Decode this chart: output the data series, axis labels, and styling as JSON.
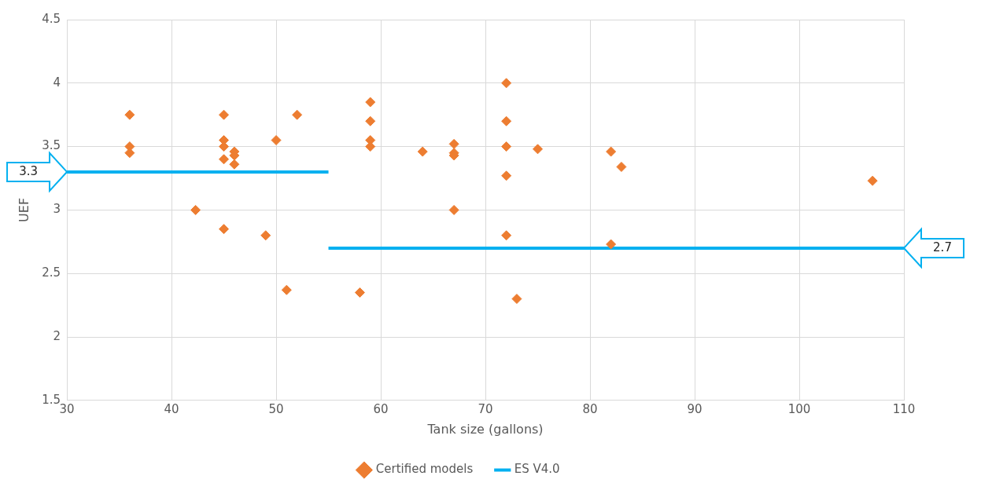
{
  "chart_data": {
    "type": "scatter",
    "xlabel": "Tank size (gallons)",
    "ylabel": "UEF",
    "xlim": [
      30,
      110
    ],
    "xticks": [
      30,
      40,
      50,
      60,
      70,
      80,
      90,
      100,
      110
    ],
    "ylim": [
      1.5,
      4.5
    ],
    "yticks": [
      1.5,
      2,
      2.5,
      3,
      3.5,
      4,
      4.5
    ],
    "grid": true,
    "legend": "bottom",
    "series": [
      {
        "name": "Certified models",
        "marker": "diamond",
        "color": "#ed7d31",
        "x": [
          36,
          36,
          36,
          42.3,
          45,
          45,
          45,
          45,
          45,
          46,
          46,
          46,
          49,
          50,
          51,
          52,
          58,
          59,
          59,
          59,
          59,
          64,
          67,
          67,
          67,
          67,
          72,
          72,
          72,
          72,
          72,
          73,
          75,
          82,
          82,
          83,
          107
        ],
        "values": [
          3.75,
          3.5,
          3.45,
          3.0,
          3.75,
          3.55,
          3.5,
          3.4,
          2.85,
          3.46,
          3.43,
          3.36,
          2.8,
          3.55,
          2.37,
          3.75,
          2.35,
          3.85,
          3.7,
          3.55,
          3.5,
          3.46,
          3.52,
          3.45,
          3.43,
          3.0,
          4.0,
          3.7,
          3.5,
          3.27,
          2.8,
          2.3,
          3.48,
          3.46,
          2.73,
          3.34,
          3.23
        ]
      },
      {
        "name": "ES V4.0",
        "type": "line",
        "line_style": "solid",
        "marker": "none",
        "color": "#00b0f0",
        "x": [
          30,
          55
        ],
        "values": [
          3.3,
          3.3
        ]
      },
      {
        "type": "line",
        "line_style": "solid",
        "marker": "none",
        "color": "#00b0f0",
        "x": [
          55,
          110
        ],
        "values": [
          2.7,
          2.7
        ]
      }
    ],
    "annotations": [
      {
        "text": "3.3",
        "x": 30,
        "y": 3.3
      },
      {
        "text": "2.7",
        "x": 110,
        "y": 2.7
      }
    ]
  }
}
